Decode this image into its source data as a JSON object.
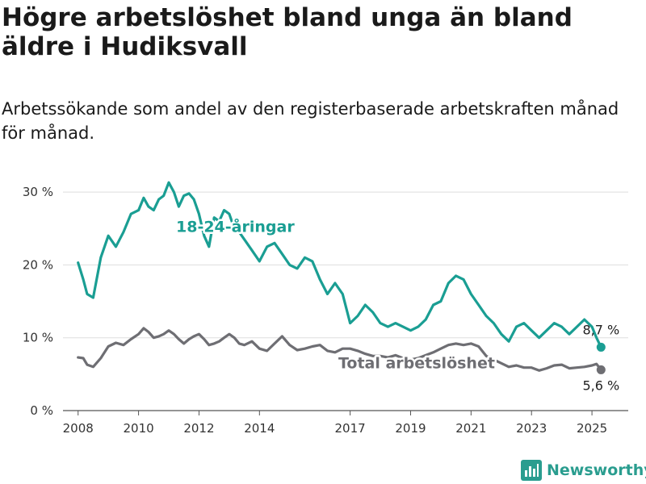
{
  "title": "Högre arbetslöshet bland unga än bland äldre i Hudiksvall",
  "subtitle": "Arbetssökande som andel av den registerbaserade arbetskraften månad för månad.",
  "brand": {
    "name": "Newsworthy",
    "icon": "bar-chart-logo-icon"
  },
  "colors": {
    "youth": "#1a9e93",
    "total": "#6e6e73",
    "grid": "#dddddd"
  },
  "chart_data": {
    "type": "line",
    "title": "Högre arbetslöshet bland unga än bland äldre i Hudiksvall",
    "subtitle": "Arbetssökande som andel av den registerbaserade arbetskraften månad för månad.",
    "ylim": [
      0,
      32
    ],
    "xlim": [
      2007.5,
      2026.2
    ],
    "y_ticks": [
      0,
      10,
      20,
      30
    ],
    "y_tick_labels": [
      "0 %",
      "10 %",
      "20 %",
      "30 %"
    ],
    "x_ticks": [
      2008,
      2010,
      2012,
      2014,
      2017,
      2019,
      2021,
      2023,
      2025
    ],
    "x_tick_labels": [
      "2008",
      "2010",
      "2012",
      "2014",
      "2017",
      "2019",
      "2021",
      "2023",
      "2025"
    ],
    "grid": "horizontal",
    "series": [
      {
        "name": "18-24-åringar",
        "color": "#1a9e93",
        "end_label": "8,7 %",
        "x": [
          2008.0,
          2008.17,
          2008.3,
          2008.5,
          2008.75,
          2009.0,
          2009.25,
          2009.5,
          2009.75,
          2010.0,
          2010.17,
          2010.33,
          2010.5,
          2010.67,
          2010.83,
          2011.0,
          2011.17,
          2011.33,
          2011.5,
          2011.67,
          2011.83,
          2012.0,
          2012.17,
          2012.33,
          2012.5,
          2012.67,
          2012.83,
          2013.0,
          2013.17,
          2013.33,
          2013.5,
          2013.75,
          2014.0,
          2014.25,
          2014.5,
          2014.75,
          2015.0,
          2015.25,
          2015.5,
          2015.75,
          2016.0,
          2016.25,
          2016.5,
          2016.75,
          2017.0,
          2017.25,
          2017.5,
          2017.75,
          2018.0,
          2018.25,
          2018.5,
          2018.75,
          2019.0,
          2019.25,
          2019.5,
          2019.75,
          2020.0,
          2020.25,
          2020.5,
          2020.75,
          2021.0,
          2021.25,
          2021.5,
          2021.75,
          2022.0,
          2022.25,
          2022.5,
          2022.75,
          2023.0,
          2023.25,
          2023.5,
          2023.75,
          2024.0,
          2024.25,
          2024.5,
          2024.75,
          2025.0,
          2025.15,
          2025.3
        ],
        "y": [
          20.3,
          18.0,
          16.0,
          15.5,
          21.0,
          24.0,
          22.5,
          24.5,
          27.0,
          27.5,
          29.2,
          28.0,
          27.5,
          29.0,
          29.5,
          31.3,
          30.0,
          28.0,
          29.5,
          29.8,
          29.0,
          27.0,
          24.0,
          22.5,
          26.5,
          26.0,
          27.5,
          27.0,
          25.0,
          24.5,
          23.5,
          22.0,
          20.5,
          22.5,
          23.0,
          21.5,
          20.0,
          19.5,
          21.0,
          20.5,
          18.0,
          16.0,
          17.5,
          16.0,
          12.0,
          13.0,
          14.5,
          13.5,
          12.0,
          11.5,
          12.0,
          11.5,
          11.0,
          11.5,
          12.5,
          14.5,
          15.0,
          17.5,
          18.5,
          18.0,
          16.0,
          14.5,
          13.0,
          12.0,
          10.5,
          9.5,
          11.5,
          12.0,
          11.0,
          10.0,
          11.0,
          12.0,
          11.5,
          10.5,
          11.5,
          12.5,
          11.5,
          10.0,
          8.7
        ]
      },
      {
        "name": "Total arbetslöshet",
        "color": "#6e6e73",
        "end_label": "5,6 %",
        "x": [
          2008.0,
          2008.17,
          2008.3,
          2008.5,
          2008.75,
          2009.0,
          2009.25,
          2009.5,
          2009.75,
          2010.0,
          2010.17,
          2010.33,
          2010.5,
          2010.67,
          2010.83,
          2011.0,
          2011.17,
          2011.33,
          2011.5,
          2011.67,
          2011.83,
          2012.0,
          2012.17,
          2012.33,
          2012.5,
          2012.67,
          2012.83,
          2013.0,
          2013.17,
          2013.33,
          2013.5,
          2013.75,
          2014.0,
          2014.25,
          2014.5,
          2014.75,
          2015.0,
          2015.25,
          2015.5,
          2015.75,
          2016.0,
          2016.25,
          2016.5,
          2016.75,
          2017.0,
          2017.25,
          2017.5,
          2017.75,
          2018.0,
          2018.25,
          2018.5,
          2018.75,
          2019.0,
          2019.25,
          2019.5,
          2019.75,
          2020.0,
          2020.25,
          2020.5,
          2020.75,
          2021.0,
          2021.25,
          2021.5,
          2021.75,
          2022.0,
          2022.25,
          2022.5,
          2022.75,
          2023.0,
          2023.25,
          2023.5,
          2023.75,
          2024.0,
          2024.25,
          2024.5,
          2024.75,
          2025.0,
          2025.15,
          2025.3
        ],
        "y": [
          7.3,
          7.2,
          6.3,
          6.0,
          7.2,
          8.8,
          9.3,
          9.0,
          9.8,
          10.5,
          11.3,
          10.8,
          10.0,
          10.2,
          10.5,
          11.0,
          10.5,
          9.8,
          9.2,
          9.8,
          10.2,
          10.5,
          9.8,
          9.0,
          9.2,
          9.5,
          10.0,
          10.5,
          10.0,
          9.2,
          9.0,
          9.5,
          8.5,
          8.2,
          9.2,
          10.2,
          9.0,
          8.3,
          8.5,
          8.8,
          9.0,
          8.2,
          8.0,
          8.5,
          8.5,
          8.2,
          7.8,
          7.5,
          7.5,
          7.3,
          7.6,
          7.2,
          7.0,
          7.2,
          7.6,
          8.0,
          8.5,
          9.0,
          9.2,
          9.0,
          9.2,
          8.8,
          7.5,
          7.0,
          6.5,
          6.0,
          6.2,
          5.9,
          5.9,
          5.5,
          5.8,
          6.2,
          6.3,
          5.8,
          5.9,
          6.0,
          6.2,
          6.4,
          5.6
        ]
      }
    ]
  }
}
